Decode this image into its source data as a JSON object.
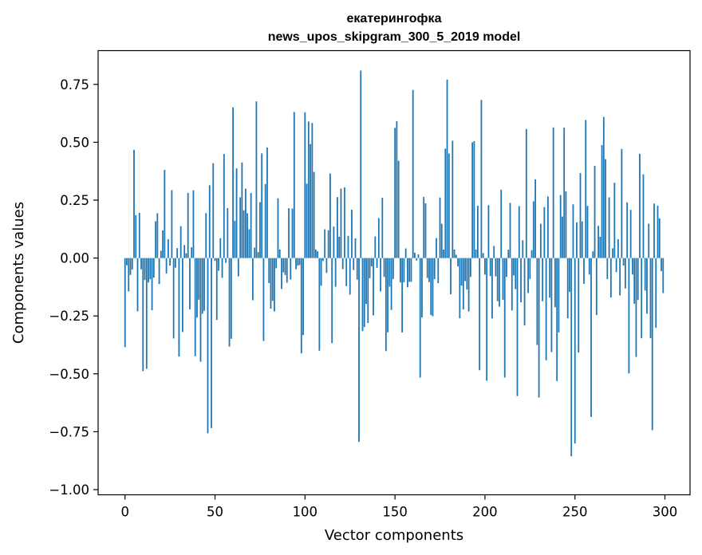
{
  "chart_data": {
    "type": "bar",
    "title_line1": "екатерингофка",
    "title_line2": "news_upos_skipgram_300_5_2019 model",
    "xlabel": "Vector components",
    "ylabel": "Components values",
    "xlim": [
      -14.95,
      313.95
    ],
    "ylim": [
      -1.0224,
      0.8958
    ],
    "x_ticks": [
      0,
      50,
      100,
      150,
      200,
      250,
      300
    ],
    "x_tick_labels": [
      "0",
      "50",
      "100",
      "150",
      "200",
      "250",
      "300"
    ],
    "y_ticks": [
      -1.0,
      -0.75,
      -0.5,
      -0.25,
      0.0,
      0.25,
      0.5,
      0.75
    ],
    "y_tick_labels": [
      "−1.00",
      "−0.75",
      "−0.50",
      "−0.25",
      "0.00",
      "0.25",
      "0.50",
      "0.75"
    ],
    "grid": false,
    "bar_color": "#1f77b4",
    "values": [
      -0.3844,
      -0.0315,
      -0.1442,
      -0.0728,
      -0.0501,
      0.4675,
      0.1851,
      -0.2301,
      0.1954,
      -0.0487,
      -0.4882,
      -0.0948,
      -0.4782,
      -0.1056,
      -0.0912,
      -0.2255,
      -0.0847,
      0.1591,
      0.1938,
      -0.1123,
      0.0315,
      0.1198,
      0.381,
      -0.0671,
      0.0811,
      -0.0327,
      0.2933,
      -0.3472,
      -0.0415,
      0.0431,
      -0.4254,
      0.1375,
      -0.3193,
      0.0563,
      0.0203,
      0.2813,
      -0.2214,
      0.0468,
      0.2925,
      -0.424,
      -0.257,
      -0.1798,
      -0.4477,
      -0.2402,
      -0.2281,
      0.1942,
      -0.7568,
      0.3146,
      -0.7343,
      0.4097,
      -0.0122,
      -0.2671,
      -0.0549,
      0.086,
      -0.0853,
      0.4492,
      -0.0203,
      0.2157,
      -0.3824,
      -0.3488,
      0.6513,
      0.1612,
      0.3874,
      -0.0792,
      0.2625,
      0.4129,
      0.206,
      0.2998,
      0.1935,
      0.1244,
      0.2808,
      -0.1822,
      0.0452,
      0.6766,
      0.0257,
      0.2412,
      0.452,
      -0.3582,
      0.3196,
      0.477,
      -0.1079,
      -0.2187,
      -0.1847,
      -0.2305,
      -0.0442,
      0.2583,
      0.0368,
      -0.1331,
      -0.0616,
      -0.0731,
      -0.1068,
      0.2153,
      -0.0925,
      0.2138,
      0.631,
      -0.0483,
      -0.033,
      -0.0303,
      -0.4117,
      -0.3328,
      0.6297,
      0.3213,
      0.5897,
      0.4923,
      0.5836,
      0.3721,
      0.0373,
      0.0293,
      -0.4001,
      -0.1198,
      -0.0127,
      0.1243,
      -0.0639,
      0.1204,
      0.3651,
      -0.3673,
      0.1358,
      -0.1238,
      0.2633,
      0.0918,
      0.2998,
      -0.0478,
      0.3051,
      -0.1212,
      0.0961,
      -0.158,
      0.2091,
      -0.0521,
      0.0851,
      -0.0932,
      -0.7937,
      0.81,
      -0.3157,
      -0.2981,
      -0.1982,
      -0.2806,
      -0.0868,
      -0.0361,
      -0.2476,
      0.0932,
      -0.0422,
      0.1729,
      -0.1442,
      0.2606,
      -0.0812,
      -0.4019,
      -0.3209,
      -0.1236,
      -0.2245,
      -0.0902,
      0.5622,
      0.5909,
      0.4202,
      -0.1055,
      -0.3213,
      -0.1047,
      0.0416,
      -0.1262,
      -0.1028,
      -0.1025,
      0.7261,
      0.0231,
      -0.0109,
      0.0162,
      -0.516,
      -0.2565,
      0.2641,
      0.2361,
      -0.0862,
      -0.104,
      -0.2462,
      -0.251,
      -0.091,
      0.0862,
      -0.1082,
      0.2612,
      0.1482,
      0.0371,
      0.4725,
      0.771,
      0.4514,
      -0.1562,
      0.5066,
      0.0367,
      0.0141,
      -0.0362,
      -0.2601,
      -0.1191,
      -0.2213,
      -0.0994,
      -0.1362,
      -0.2304,
      -0.0817,
      0.4999,
      0.5048,
      0.0371,
      0.2263,
      -0.4843,
      0.6826,
      0.0215,
      -0.0716,
      -0.5297,
      0.2282,
      -0.0781,
      -0.2611,
      0.0523,
      -0.0791,
      -0.1862,
      -0.2102,
      0.2951,
      -0.1802,
      -0.516,
      -0.0812,
      0.0361,
      0.2382,
      -0.2262,
      -0.0751,
      -0.1342,
      -0.596,
      0.2243,
      -0.1912,
      0.0772,
      -0.2911,
      0.5573,
      -0.1512,
      -0.0902,
      0.0342,
      0.2451,
      0.3402,
      -0.3752,
      -0.6022,
      0.1482,
      -0.1862,
      0.2202,
      -0.4412,
      0.2662,
      -0.1711,
      -0.406,
      0.5641,
      -0.2122,
      -0.5312,
      -0.3212,
      0.2721,
      0.1791,
      0.5632,
      0.2882,
      -0.2602,
      -0.1462,
      -0.8561,
      0.2322,
      -0.8012,
      0.1542,
      -0.4082,
      0.3672,
      0.1582,
      -0.1111,
      0.5962,
      0.2252,
      -0.0712,
      -0.6862,
      0.0292,
      0.3982,
      -0.2462,
      0.1392,
      0.0922,
      0.4882,
      0.6092,
      0.4272,
      -0.0911,
      0.2622,
      -0.1702,
      0.0421,
      0.3252,
      -0.0611,
      0.0812,
      -0.1612,
      0.4712,
      -0.0322,
      -0.1312,
      0.2402,
      -0.4982,
      0.2082,
      -0.0712,
      -0.1972,
      -0.4272,
      -0.1811,
      0.4502,
      -0.3462,
      0.3612,
      -0.1402,
      -0.2402,
      0.1482,
      -0.3462,
      -0.7432,
      0.2352,
      -0.3012,
      0.2262,
      0.1712,
      -0.0561,
      -0.1512
    ]
  }
}
